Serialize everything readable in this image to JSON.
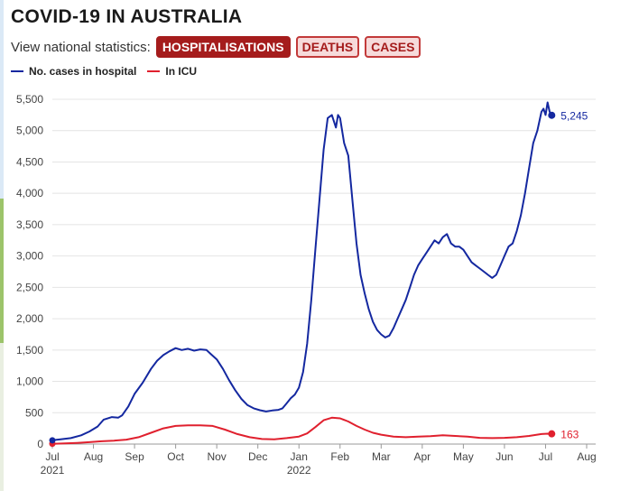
{
  "header": {
    "title": "COVID-19 IN AUSTRALIA",
    "subtitle": "View national statistics:",
    "tabs": [
      {
        "label": "HOSPITALISATIONS",
        "active": true
      },
      {
        "label": "DEATHS",
        "active": false
      },
      {
        "label": "CASES",
        "active": false
      }
    ]
  },
  "colors": {
    "hospital": "#1428a0",
    "icu": "#e0202e",
    "grid": "#e4e4e4",
    "accent": "#a51c1c"
  },
  "chart_data": {
    "type": "line",
    "title": "COVID-19 IN AUSTRALIA",
    "xlabel": "",
    "ylabel": "",
    "ylim": [
      0,
      5500
    ],
    "yticks": [
      0,
      500,
      1000,
      1500,
      2000,
      2500,
      3000,
      3500,
      4000,
      4500,
      5000,
      5500
    ],
    "ytick_labels": [
      "0",
      "500",
      "1,000",
      "1,500",
      "2,000",
      "2,500",
      "3,000",
      "3,500",
      "4,000",
      "4,500",
      "5,000",
      "5,500"
    ],
    "x_tick_labels": [
      "Jul",
      "Aug",
      "Sep",
      "Oct",
      "Nov",
      "Dec",
      "Jan",
      "Feb",
      "Mar",
      "Apr",
      "May",
      "Jun",
      "Jul",
      "Aug"
    ],
    "x_year_labels": [
      {
        "month_index": 0,
        "label": "2021"
      },
      {
        "month_index": 6,
        "label": "2022"
      }
    ],
    "grid": "horizontal",
    "legend": "top-left",
    "x_units": "months since Jul 2021",
    "series": [
      {
        "name": "No. cases in hospital",
        "color": "#1428a0",
        "end_label": "5,245",
        "points": [
          [
            0.0,
            60
          ],
          [
            0.2,
            75
          ],
          [
            0.45,
            95
          ],
          [
            0.7,
            140
          ],
          [
            0.9,
            200
          ],
          [
            1.1,
            280
          ],
          [
            1.25,
            390
          ],
          [
            1.45,
            430
          ],
          [
            1.6,
            420
          ],
          [
            1.7,
            460
          ],
          [
            1.85,
            600
          ],
          [
            2.0,
            800
          ],
          [
            2.2,
            980
          ],
          [
            2.4,
            1200
          ],
          [
            2.55,
            1330
          ],
          [
            2.7,
            1420
          ],
          [
            2.85,
            1480
          ],
          [
            3.0,
            1530
          ],
          [
            3.15,
            1500
          ],
          [
            3.3,
            1520
          ],
          [
            3.45,
            1490
          ],
          [
            3.6,
            1510
          ],
          [
            3.75,
            1500
          ],
          [
            3.85,
            1440
          ],
          [
            4.0,
            1350
          ],
          [
            4.15,
            1200
          ],
          [
            4.3,
            1020
          ],
          [
            4.45,
            860
          ],
          [
            4.6,
            720
          ],
          [
            4.75,
            620
          ],
          [
            4.9,
            570
          ],
          [
            5.05,
            540
          ],
          [
            5.2,
            520
          ],
          [
            5.35,
            535
          ],
          [
            5.5,
            545
          ],
          [
            5.6,
            570
          ],
          [
            5.7,
            650
          ],
          [
            5.8,
            730
          ],
          [
            5.9,
            790
          ],
          [
            6.0,
            900
          ],
          [
            6.1,
            1150
          ],
          [
            6.2,
            1600
          ],
          [
            6.3,
            2300
          ],
          [
            6.4,
            3100
          ],
          [
            6.5,
            3900
          ],
          [
            6.6,
            4700
          ],
          [
            6.7,
            5200
          ],
          [
            6.8,
            5250
          ],
          [
            6.9,
            5050
          ],
          [
            6.95,
            5250
          ],
          [
            7.0,
            5200
          ],
          [
            7.1,
            4800
          ],
          [
            7.2,
            4600
          ],
          [
            7.3,
            3900
          ],
          [
            7.4,
            3200
          ],
          [
            7.5,
            2700
          ],
          [
            7.6,
            2400
          ],
          [
            7.7,
            2150
          ],
          [
            7.8,
            1950
          ],
          [
            7.9,
            1820
          ],
          [
            8.0,
            1750
          ],
          [
            8.1,
            1700
          ],
          [
            8.2,
            1730
          ],
          [
            8.3,
            1850
          ],
          [
            8.4,
            2000
          ],
          [
            8.5,
            2150
          ],
          [
            8.6,
            2300
          ],
          [
            8.7,
            2500
          ],
          [
            8.8,
            2700
          ],
          [
            8.9,
            2850
          ],
          [
            9.0,
            2950
          ],
          [
            9.1,
            3050
          ],
          [
            9.2,
            3150
          ],
          [
            9.3,
            3250
          ],
          [
            9.4,
            3200
          ],
          [
            9.5,
            3300
          ],
          [
            9.6,
            3350
          ],
          [
            9.7,
            3200
          ],
          [
            9.8,
            3150
          ],
          [
            9.9,
            3150
          ],
          [
            10.0,
            3100
          ],
          [
            10.1,
            3000
          ],
          [
            10.2,
            2900
          ],
          [
            10.3,
            2850
          ],
          [
            10.4,
            2800
          ],
          [
            10.5,
            2750
          ],
          [
            10.6,
            2700
          ],
          [
            10.7,
            2650
          ],
          [
            10.8,
            2700
          ],
          [
            10.9,
            2850
          ],
          [
            11.0,
            3000
          ],
          [
            11.1,
            3150
          ],
          [
            11.2,
            3200
          ],
          [
            11.3,
            3400
          ],
          [
            11.4,
            3650
          ],
          [
            11.5,
            4000
          ],
          [
            11.6,
            4400
          ],
          [
            11.7,
            4800
          ],
          [
            11.8,
            5000
          ],
          [
            11.9,
            5300
          ],
          [
            11.95,
            5350
          ],
          [
            12.0,
            5250
          ],
          [
            12.05,
            5450
          ],
          [
            12.1,
            5300
          ],
          [
            12.15,
            5245
          ]
        ]
      },
      {
        "name": "In ICU",
        "color": "#e0202e",
        "end_label": "163",
        "points": [
          [
            0.0,
            5
          ],
          [
            0.3,
            10
          ],
          [
            0.6,
            18
          ],
          [
            0.9,
            30
          ],
          [
            1.2,
            45
          ],
          [
            1.5,
            55
          ],
          [
            1.8,
            70
          ],
          [
            2.1,
            110
          ],
          [
            2.4,
            180
          ],
          [
            2.7,
            250
          ],
          [
            3.0,
            290
          ],
          [
            3.3,
            300
          ],
          [
            3.6,
            300
          ],
          [
            3.9,
            290
          ],
          [
            4.2,
            230
          ],
          [
            4.5,
            160
          ],
          [
            4.8,
            110
          ],
          [
            5.1,
            80
          ],
          [
            5.4,
            75
          ],
          [
            5.7,
            95
          ],
          [
            6.0,
            120
          ],
          [
            6.2,
            170
          ],
          [
            6.4,
            270
          ],
          [
            6.6,
            380
          ],
          [
            6.8,
            420
          ],
          [
            7.0,
            410
          ],
          [
            7.2,
            360
          ],
          [
            7.4,
            290
          ],
          [
            7.6,
            230
          ],
          [
            7.8,
            180
          ],
          [
            8.0,
            150
          ],
          [
            8.3,
            120
          ],
          [
            8.6,
            110
          ],
          [
            8.9,
            120
          ],
          [
            9.2,
            125
          ],
          [
            9.5,
            140
          ],
          [
            9.8,
            130
          ],
          [
            10.1,
            120
          ],
          [
            10.4,
            100
          ],
          [
            10.7,
            95
          ],
          [
            11.0,
            100
          ],
          [
            11.3,
            110
          ],
          [
            11.6,
            130
          ],
          [
            11.9,
            160
          ],
          [
            12.05,
            165
          ],
          [
            12.15,
            163
          ]
        ]
      }
    ]
  }
}
